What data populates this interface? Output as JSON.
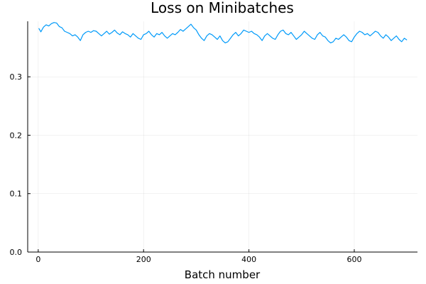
{
  "chart_data": {
    "type": "line",
    "title": "Loss on Minibatches",
    "xlabel": "Batch number",
    "ylabel": "",
    "xlim": [
      -20,
      720
    ],
    "ylim": [
      0.0,
      0.395
    ],
    "xticks": [
      0,
      200,
      400,
      600
    ],
    "xtick_labels": [
      "0",
      "200",
      "400",
      "600"
    ],
    "yticks": [
      0.0,
      0.1,
      0.2,
      0.3
    ],
    "ytick_labels": [
      "0.0",
      "0.1",
      "0.2",
      "0.3"
    ],
    "grid": true,
    "legend": "none",
    "line_color": "#009AF9",
    "series": [
      {
        "x": [
          1,
          5,
          10,
          15,
          20,
          25,
          30,
          35,
          40,
          45,
          50,
          55,
          60,
          65,
          70,
          75,
          80,
          85,
          90,
          95,
          100,
          105,
          110,
          115,
          120,
          125,
          130,
          135,
          140,
          145,
          150,
          155,
          160,
          165,
          170,
          175,
          180,
          185,
          190,
          195,
          200,
          205,
          210,
          215,
          220,
          225,
          230,
          235,
          240,
          245,
          250,
          255,
          260,
          265,
          270,
          275,
          280,
          285,
          290,
          295,
          300,
          305,
          310,
          315,
          320,
          325,
          330,
          335,
          340,
          345,
          350,
          355,
          360,
          365,
          370,
          375,
          380,
          385,
          390,
          395,
          400,
          405,
          410,
          415,
          420,
          425,
          430,
          435,
          440,
          445,
          450,
          455,
          460,
          465,
          470,
          475,
          480,
          485,
          490,
          495,
          500,
          505,
          510,
          515,
          520,
          525,
          530,
          535,
          540,
          545,
          550,
          555,
          560,
          565,
          570,
          575,
          580,
          585,
          590,
          595,
          600,
          605,
          610,
          615,
          620,
          625,
          630,
          635,
          640,
          645,
          650,
          655,
          660,
          665,
          670,
          675,
          680,
          685,
          690,
          695,
          700
        ],
        "values": [
          0.383,
          0.377,
          0.385,
          0.389,
          0.387,
          0.391,
          0.393,
          0.392,
          0.386,
          0.384,
          0.378,
          0.376,
          0.374,
          0.37,
          0.372,
          0.368,
          0.362,
          0.372,
          0.376,
          0.378,
          0.376,
          0.379,
          0.378,
          0.374,
          0.37,
          0.374,
          0.378,
          0.373,
          0.376,
          0.38,
          0.375,
          0.372,
          0.377,
          0.374,
          0.372,
          0.368,
          0.374,
          0.37,
          0.366,
          0.364,
          0.372,
          0.374,
          0.378,
          0.372,
          0.368,
          0.374,
          0.372,
          0.376,
          0.37,
          0.366,
          0.37,
          0.374,
          0.372,
          0.376,
          0.381,
          0.378,
          0.382,
          0.386,
          0.39,
          0.384,
          0.38,
          0.372,
          0.366,
          0.362,
          0.37,
          0.374,
          0.372,
          0.368,
          0.364,
          0.37,
          0.362,
          0.358,
          0.36,
          0.366,
          0.372,
          0.376,
          0.37,
          0.374,
          0.38,
          0.378,
          0.376,
          0.378,
          0.374,
          0.372,
          0.368,
          0.362,
          0.37,
          0.374,
          0.37,
          0.366,
          0.364,
          0.372,
          0.378,
          0.38,
          0.374,
          0.372,
          0.376,
          0.37,
          0.364,
          0.368,
          0.372,
          0.378,
          0.374,
          0.37,
          0.366,
          0.364,
          0.372,
          0.376,
          0.37,
          0.368,
          0.362,
          0.358,
          0.36,
          0.366,
          0.364,
          0.368,
          0.372,
          0.368,
          0.362,
          0.36,
          0.368,
          0.374,
          0.378,
          0.376,
          0.372,
          0.374,
          0.37,
          0.374,
          0.378,
          0.376,
          0.37,
          0.366,
          0.372,
          0.368,
          0.362,
          0.366,
          0.37,
          0.364,
          0.36,
          0.366,
          0.363
        ]
      }
    ]
  }
}
